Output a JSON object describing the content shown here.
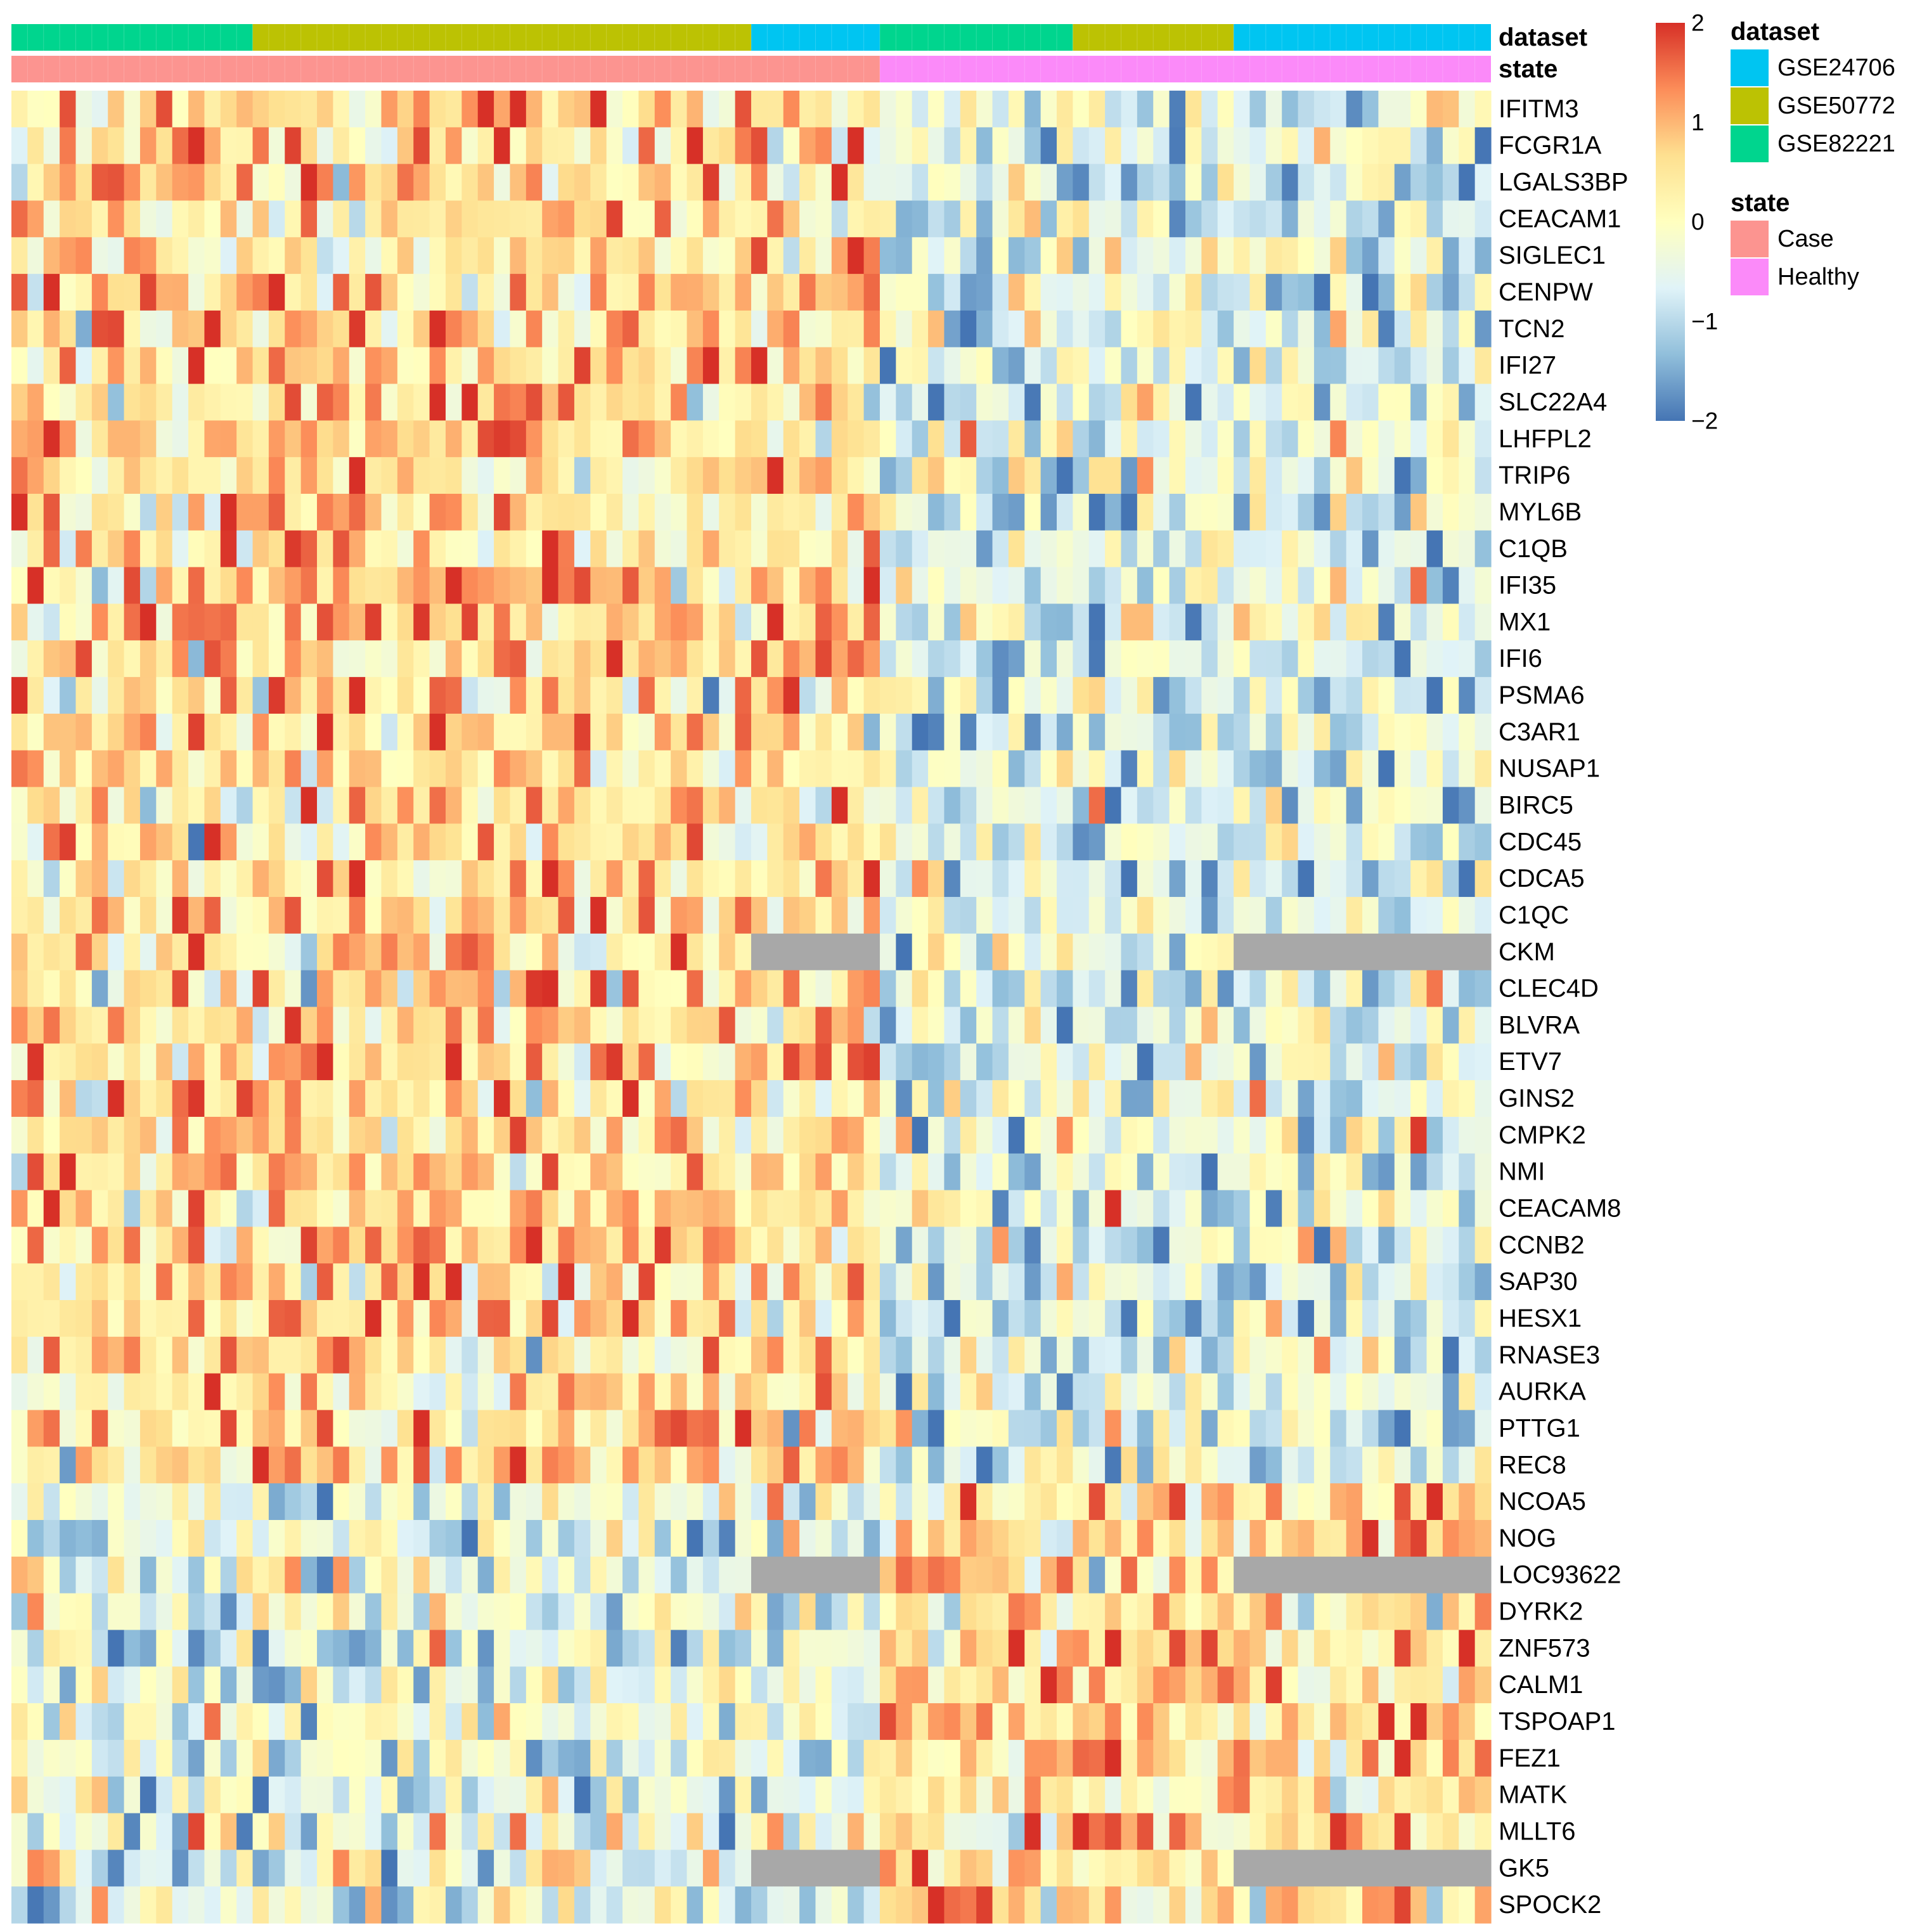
{
  "chart_data": {
    "type": "heatmap",
    "title": "",
    "annotation_rows": [
      {
        "key": "dataset",
        "label": "dataset"
      },
      {
        "key": "state",
        "label": "state"
      }
    ],
    "sample_groups": [
      {
        "dataset": "GSE82221",
        "state": "Case",
        "count": 15
      },
      {
        "dataset": "GSE50772",
        "state": "Case",
        "count": 31
      },
      {
        "dataset": "GSE24706",
        "state": "Case",
        "count": 8
      },
      {
        "dataset": "GSE82221",
        "state": "Healthy",
        "count": 12
      },
      {
        "dataset": "GSE50772",
        "state": "Healthy",
        "count": 10
      },
      {
        "dataset": "GSE24706",
        "state": "Healthy",
        "count": 16
      }
    ],
    "genes": [
      "IFITM3",
      "FCGR1A",
      "LGALS3BP",
      "CEACAM1",
      "SIGLEC1",
      "CENPW",
      "TCN2",
      "IFI27",
      "SLC22A4",
      "LHFPL2",
      "TRIP6",
      "MYL6B",
      "C1QB",
      "IFI35",
      "MX1",
      "IFI6",
      "PSMA6",
      "C3AR1",
      "NUSAP1",
      "BIRC5",
      "CDC45",
      "CDCA5",
      "C1QC",
      "CKM",
      "CLEC4D",
      "BLVRA",
      "ETV7",
      "GINS2",
      "CMPK2",
      "NMI",
      "CEACAM8",
      "CCNB2",
      "SAP30",
      "HESX1",
      "RNASE3",
      "AURKA",
      "PTTG1",
      "REC8",
      "NCOA5",
      "NOG",
      "LOC93622",
      "DYRK2",
      "ZNF573",
      "CALM1",
      "TSPOAP1",
      "FEZ1",
      "MATK",
      "MLLT6",
      "GK5",
      "SPOCK2"
    ],
    "up_in_case_gene_count": 38,
    "missing_in_datasets": [
      {
        "gene": "CKM",
        "datasets": [
          "GSE24706"
        ]
      },
      {
        "gene": "LOC93622",
        "datasets": [
          "GSE24706"
        ]
      },
      {
        "gene": "GK5",
        "datasets": [
          "GSE24706"
        ]
      }
    ],
    "value_range": [
      -2,
      2
    ],
    "colorbar_ticks": [
      {
        "value": 2,
        "label": "2"
      },
      {
        "value": 1,
        "label": "1"
      },
      {
        "value": 0,
        "label": "0"
      },
      {
        "value": -1,
        "label": "−1"
      },
      {
        "value": -2,
        "label": "−2"
      }
    ],
    "color_scale": [
      "#4575b4",
      "#91bfdb",
      "#e0f3f8",
      "#ffffbf",
      "#fee090",
      "#fc8d59",
      "#d73027"
    ],
    "missing_color": "#a8a8a8",
    "legend": [
      {
        "title": "dataset",
        "items": [
          {
            "label": "GSE24706",
            "color": "#00c5f1"
          },
          {
            "label": "GSE50772",
            "color": "#bcc203"
          },
          {
            "label": "GSE82221",
            "color": "#00d58e"
          }
        ]
      },
      {
        "title": "state",
        "items": [
          {
            "label": "Case",
            "color": "#fc9490"
          },
          {
            "label": "Healthy",
            "color": "#fb8af9"
          }
        ]
      }
    ],
    "legend_placement": "right"
  }
}
